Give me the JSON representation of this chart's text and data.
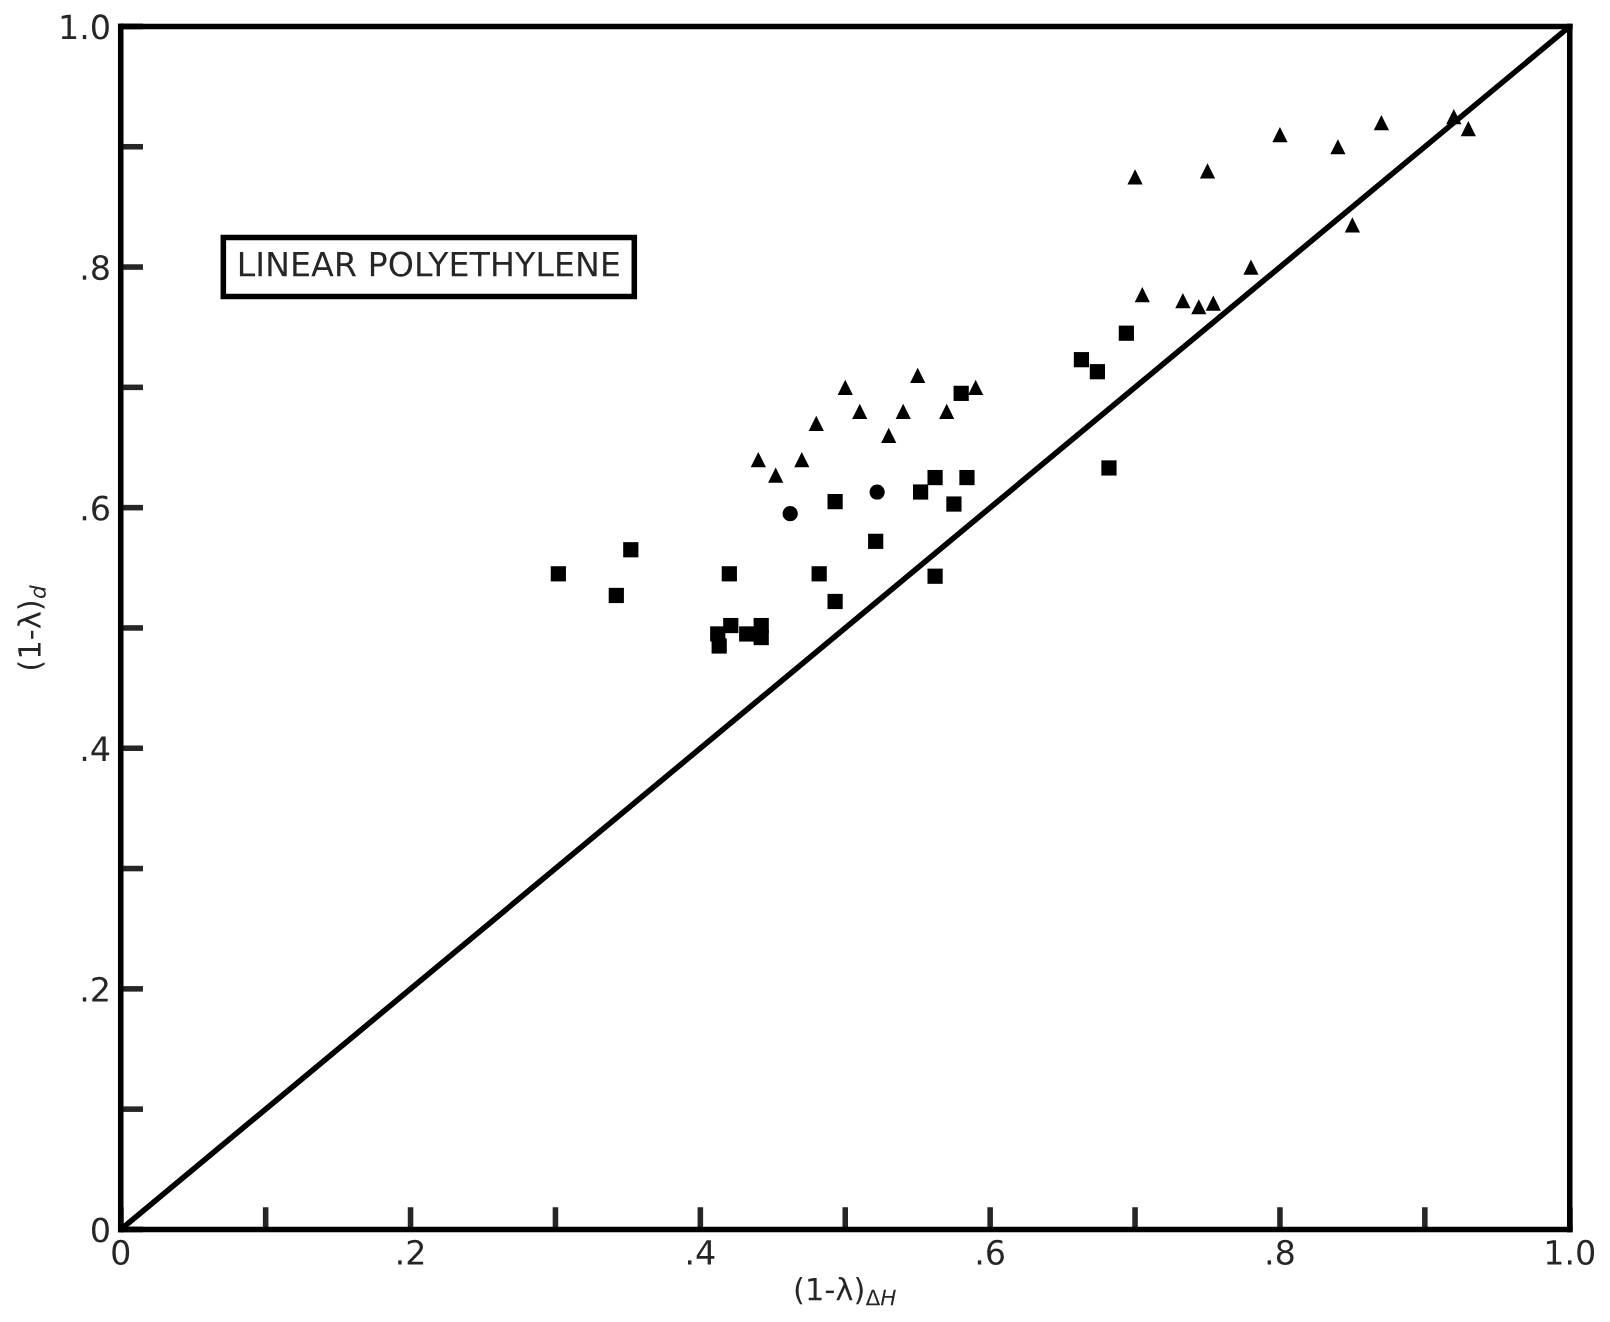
{
  "chart_data": {
    "type": "scatter",
    "xlabel": "(1-λ)$_{ΔH}$",
    "ylabel": "(1-λ)$_{d}$",
    "annotations": [
      "LINEAR POLYETHYLENE"
    ],
    "xlim": [
      0,
      1.0
    ],
    "ylim": [
      0,
      1.0
    ],
    "xticks": [
      0,
      {
        "value": 0.1,
        "label": null
      },
      {
        "value": 0.2,
        "label": ".2"
      },
      {
        "value": 0.3,
        "label": null
      },
      {
        "value": 0.4,
        "label": ".4"
      },
      {
        "value": 0.5,
        "label": null
      },
      {
        "value": 0.6,
        "label": ".6"
      },
      {
        "value": 0.7,
        "label": null
      },
      {
        "value": 0.8,
        "label": ".8"
      },
      {
        "value": 0.9,
        "label": null
      },
      {
        "value": 1.0,
        "label": "1.0"
      }
    ],
    "yticks": [
      0,
      {
        "value": 0.1,
        "label": null
      },
      {
        "value": 0.2,
        "label": ".2"
      },
      {
        "value": 0.3,
        "label": null
      },
      {
        "value": 0.4,
        "label": ".4"
      },
      {
        "value": 0.5,
        "label": null
      },
      {
        "value": 0.6,
        "label": ".6"
      },
      {
        "value": 0.7,
        "label": null
      },
      {
        "value": 0.8,
        "label": ".8"
      },
      {
        "value": 0.9,
        "label": null
      },
      {
        "value": 1.0,
        "label": "1.0"
      }
    ],
    "grid": false,
    "series": [
      {
        "type": "line",
        "color": "#000000",
        "marker": "none",
        "line_style": "solid",
        "x": [
          0,
          1.0
        ],
        "values": [
          0,
          1.0
        ]
      },
      {
        "color": "#000000",
        "marker": "square",
        "x": [
          0.302,
          0.342,
          0.352,
          0.482,
          0.493,
          0.58,
          0.682
        ],
        "values": [
          0.545,
          0.527,
          0.565,
          0.545,
          0.522,
          0.695,
          0.633
        ]
      },
      {
        "color": "#000000",
        "marker": "square",
        "x": [
          0.42,
          0.412,
          0.413,
          0.421,
          0.432,
          0.442,
          0.442,
          0.493,
          0.521,
          0.552,
          0.562,
          0.575,
          0.584,
          0.562,
          0.663,
          0.674,
          0.694
        ],
        "values": [
          0.545,
          0.495,
          0.485,
          0.502,
          0.495,
          0.502,
          0.492,
          0.605,
          0.572,
          0.613,
          0.625,
          0.603,
          0.625,
          0.543,
          0.723,
          0.713,
          0.745
        ]
      },
      {
        "color": "#000000",
        "marker": "circle",
        "x": [
          0.462,
          0.522
        ],
        "values": [
          0.595,
          0.613
        ]
      },
      {
        "color": "#000000",
        "marker": "triangle",
        "x": [
          0.44,
          0.452,
          0.47,
          0.48,
          0.5,
          0.51,
          0.53,
          0.54,
          0.55,
          0.733,
          0.744,
          0.754,
          0.75,
          0.78,
          0.8,
          0.84,
          0.87
        ],
        "values": [
          0.64,
          0.627,
          0.64,
          0.67,
          0.7,
          0.68,
          0.66,
          0.68,
          0.71,
          0.772,
          0.767,
          0.77,
          0.88,
          0.8,
          0.91,
          0.9,
          0.92
        ]
      },
      {
        "color": "#000000",
        "marker": "triangle",
        "x": [
          0.57,
          0.59,
          0.7,
          0.705,
          0.85,
          0.92,
          0.93
        ],
        "values": [
          0.68,
          0.7,
          0.875,
          0.777,
          0.835,
          0.925,
          0.915
        ]
      }
    ]
  }
}
